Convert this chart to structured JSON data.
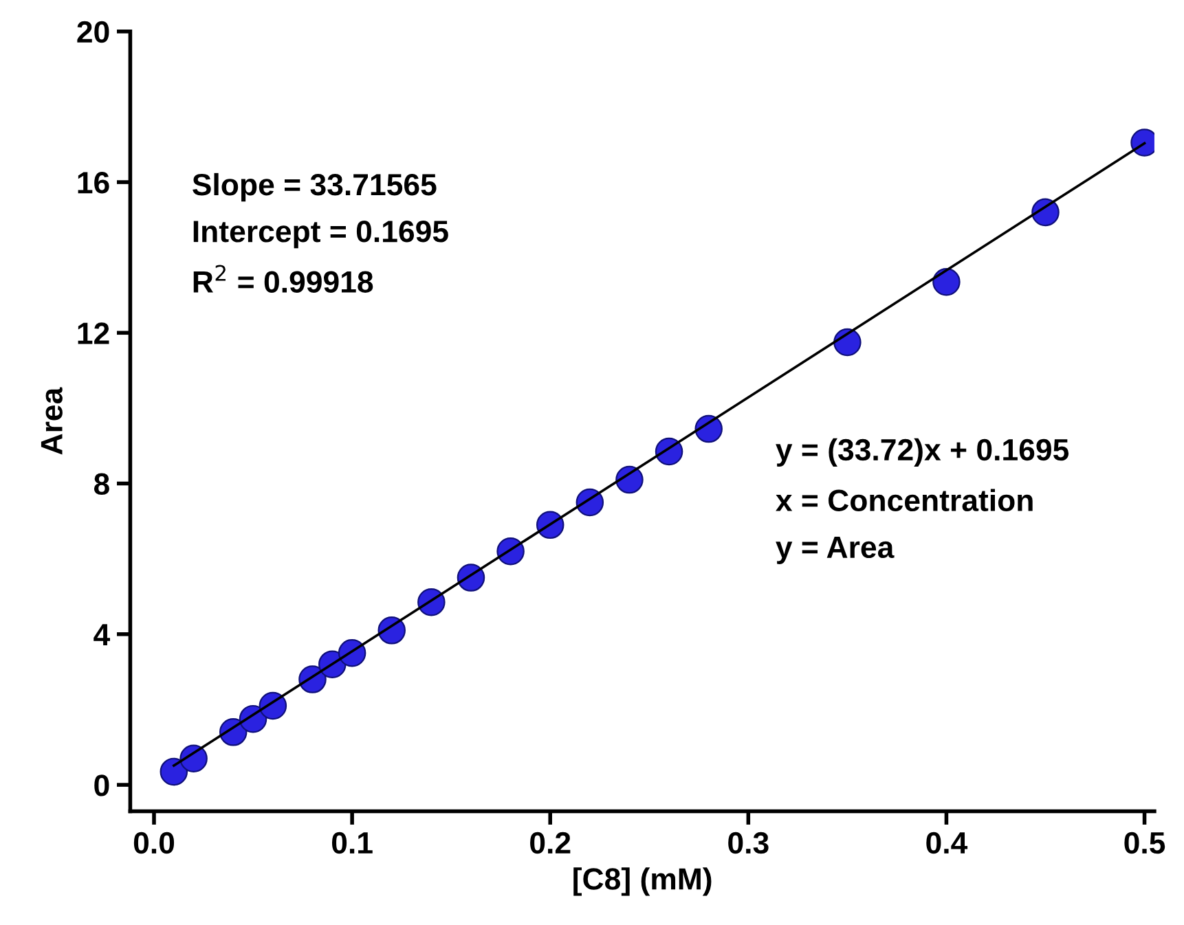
{
  "chart_data": {
    "type": "scatter",
    "xlabel": "[C8] (mM)",
    "ylabel": "Area",
    "xlim": [
      -0.012,
      0.505
    ],
    "ylim": [
      -0.7,
      20
    ],
    "xticks": [
      {
        "value": 0,
        "label": "0.0"
      },
      0.1,
      0.2,
      0.3,
      0.4,
      0.5
    ],
    "yticks": [
      0,
      4,
      8,
      12,
      16,
      20
    ],
    "grid": false,
    "legend": false,
    "series": [
      {
        "marker": "circle",
        "color": "#2a22e0",
        "x": [
          0.01,
          0.02,
          0.04,
          0.05,
          0.06,
          0.08,
          0.09,
          0.1,
          0.12,
          0.14,
          0.16,
          0.18,
          0.2,
          0.22,
          0.24,
          0.26,
          0.28,
          0.35,
          0.4,
          0.45,
          0.5
        ],
        "values": [
          0.35,
          0.7,
          1.4,
          1.75,
          2.1,
          2.8,
          3.2,
          3.5,
          4.1,
          4.85,
          5.5,
          6.2,
          6.9,
          7.5,
          8.1,
          8.85,
          9.45,
          11.75,
          13.35,
          15.2,
          17.05
        ]
      },
      {
        "type": "line",
        "color": "#000000",
        "x": [
          0.01,
          0.5
        ],
        "values": [
          0.51,
          17.03
        ]
      }
    ],
    "annotations": [
      "Slope = 33.71565",
      "Intercept = 0.1695",
      "R$^{2}$ = 0.99918",
      "y = (33.72)x + 0.1695",
      "x = Concentration",
      "y = Area"
    ]
  }
}
